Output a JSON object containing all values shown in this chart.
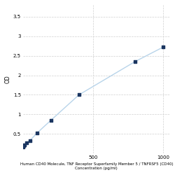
{
  "x_values": [
    3.125,
    6.25,
    12.5,
    25,
    50,
    100,
    200,
    400,
    800,
    1000
  ],
  "y_values": [
    0.175,
    0.195,
    0.22,
    0.27,
    0.33,
    0.52,
    0.85,
    1.5,
    2.35,
    2.72
  ],
  "x_label_line1": "Human CD40 Molecule, TNF Receptor Superfamily Member 5 / TNFRSF5 (CD40)",
  "x_label_line2": "Concentration (pg/ml)",
  "y_label": "OD",
  "line_color": "#b8d4ea",
  "marker_color": "#1a3560",
  "bg_color": "#ffffff",
  "grid_color": "#d0d0d0",
  "x_ticks": [
    500,
    1000
  ],
  "x_tick_labels": [
    "500",
    "1000"
  ],
  "y_ticks": [
    0.5,
    1.0,
    1.5,
    2.0,
    2.5,
    3.0,
    3.5
  ],
  "y_tick_labels": [
    "0.5",
    "1",
    "1.5",
    "2",
    "2.5",
    "3",
    "3.5"
  ],
  "xlim": [
    0,
    1050
  ],
  "ylim": [
    0,
    3.8
  ],
  "figsize": [
    2.5,
    2.5
  ],
  "dpi": 100
}
